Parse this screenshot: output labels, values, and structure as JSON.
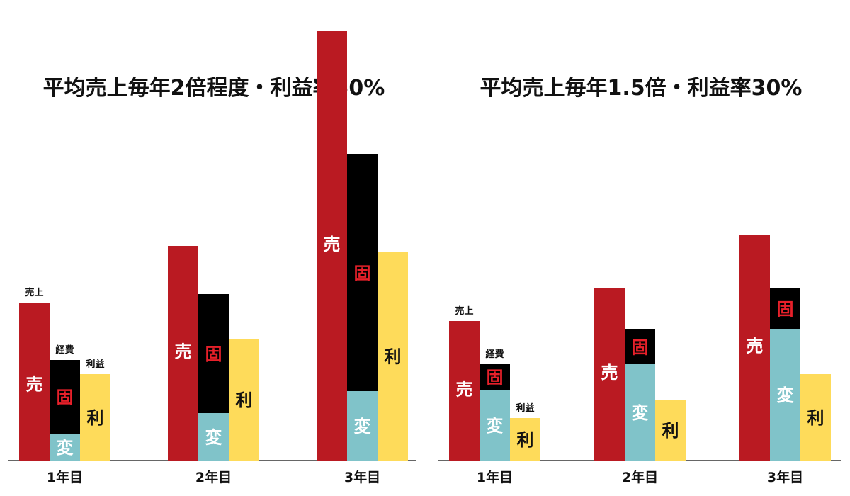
{
  "colors": {
    "sales": "#BA1A22",
    "fixed": "#000000",
    "variable": "#80C3C9",
    "profit": "#FEDB5A",
    "fixed_label": "#E8202A",
    "axis": "#333333"
  },
  "chart_data": [
    {
      "type": "bar",
      "title": "平均売上毎年2倍程度・利益率50%",
      "categories": [
        "1年目",
        "2年目",
        "3年目"
      ],
      "ylim": [
        0,
        610
      ],
      "series": [
        {
          "name": "売上",
          "values": [
            223,
            303,
            606
          ]
        },
        {
          "name": "経費",
          "values": [
            142,
            235,
            432
          ],
          "components": {
            "fixed": [
              104,
              168,
              334
            ],
            "variable": [
              38,
              67,
              98
            ]
          }
        },
        {
          "name": "利益",
          "values": [
            122,
            172,
            295
          ]
        }
      ],
      "bar_labels": {
        "sales": "売",
        "fixed": "固",
        "variable": "変",
        "profit": "利"
      },
      "legend_labels": [
        "売上",
        "経費",
        "利益"
      ]
    },
    {
      "type": "bar",
      "title": "平均売上毎年1.5倍・利益率30%",
      "categories": [
        "1年目",
        "2年目",
        "3年目"
      ],
      "ylim": [
        0,
        610
      ],
      "series": [
        {
          "name": "売上",
          "values": [
            197,
            244,
            319
          ]
        },
        {
          "name": "経費",
          "values": [
            136,
            185,
            243
          ],
          "components": {
            "fixed": [
              36,
              49,
              57
            ],
            "variable": [
              100,
              136,
              186
            ]
          }
        },
        {
          "name": "利益",
          "values": [
            60,
            86,
            122
          ]
        }
      ],
      "bar_labels": {
        "sales": "売",
        "fixed": "固",
        "variable": "変",
        "profit": "利"
      },
      "legend_labels": [
        "売上",
        "経費",
        "利益"
      ]
    }
  ]
}
